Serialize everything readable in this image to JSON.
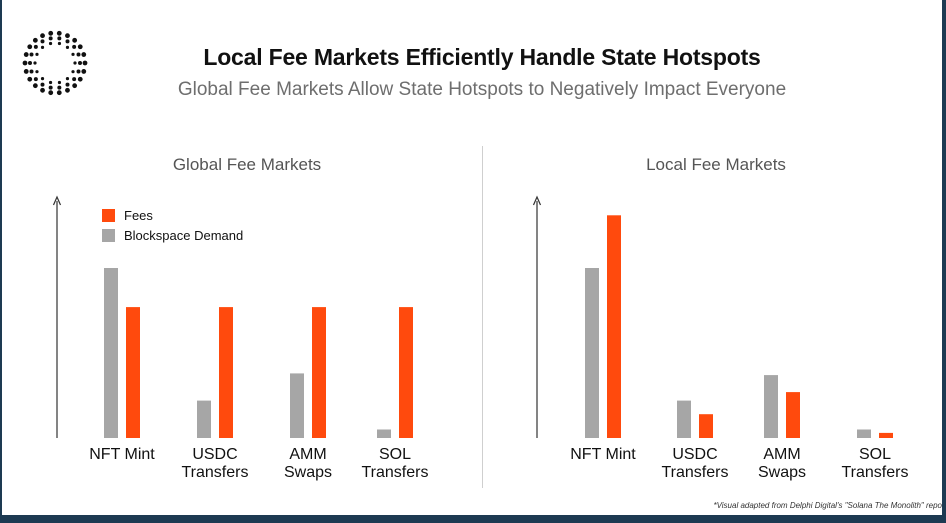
{
  "header": {
    "title": "Local Fee Markets Efficiently Handle State Hotspots",
    "subtitle": "Global Fee Markets Allow State Hotspots to Negatively Impact Everyone"
  },
  "logo_icon": "dotted-circle-logo-icon",
  "colors": {
    "fees": "#ff4a0d",
    "demand": "#a6a6a6",
    "axis": "#333333"
  },
  "chart_data": [
    {
      "type": "bar",
      "title": "Global Fee Markets",
      "categories": [
        "NFT Mint",
        "USDC Transfers",
        "AMM Swaps",
        "SOL Transfers"
      ],
      "category_lines": [
        [
          "NFT Mint"
        ],
        [
          "USDC",
          "Transfers"
        ],
        [
          "AMM",
          "Swaps"
        ],
        [
          "SOL",
          "Transfers"
        ]
      ],
      "series": [
        {
          "name": "Blockspace Demand",
          "values": [
            100,
            22,
            38,
            5
          ]
        },
        {
          "name": "Fees",
          "values": [
            77,
            77,
            77,
            77
          ]
        }
      ],
      "legend": [
        "Fees",
        "Blockspace Demand"
      ],
      "legend_position": "top-left",
      "ylim": [
        0,
        140
      ],
      "xlabel": "",
      "ylabel": ""
    },
    {
      "type": "bar",
      "title": "Local Fee Markets",
      "categories": [
        "NFT Mint",
        "USDC Transfers",
        "AMM Swaps",
        "SOL Transfers"
      ],
      "category_lines": [
        [
          "NFT Mint"
        ],
        [
          "USDC",
          "Transfers"
        ],
        [
          "AMM",
          "Swaps"
        ],
        [
          "SOL",
          "Transfers"
        ]
      ],
      "series": [
        {
          "name": "Blockspace Demand",
          "values": [
            100,
            22,
            37,
            5
          ]
        },
        {
          "name": "Fees",
          "values": [
            131,
            14,
            27,
            3
          ]
        }
      ],
      "ylim": [
        0,
        140
      ],
      "xlabel": "",
      "ylabel": ""
    }
  ],
  "footnote": "*Visual adapted from Delphi Digital's \"Solana The Monolith\" repo"
}
